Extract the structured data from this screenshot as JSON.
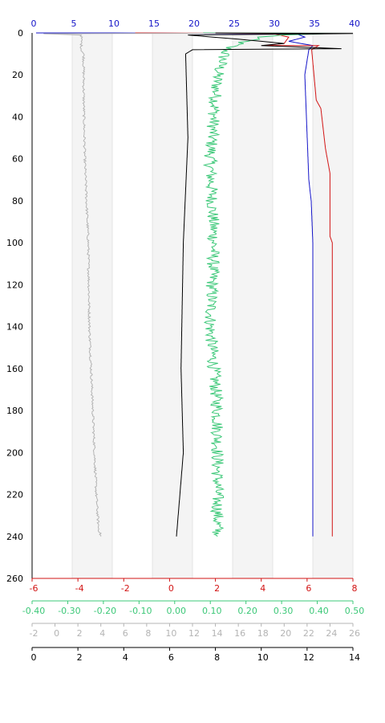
{
  "chart_data": {
    "type": "line",
    "title": "",
    "orientation": "vertical-profile",
    "grid": "alternating-bands",
    "y_axis": {
      "label": "",
      "range": [
        0,
        260
      ],
      "inverted": true,
      "ticks": [
        "0",
        "20",
        "40",
        "60",
        "80",
        "100",
        "120",
        "140",
        "160",
        "180",
        "200",
        "220",
        "240",
        "260"
      ],
      "color": "#000000"
    },
    "x_axes": [
      {
        "position": "top",
        "range": [
          0,
          40
        ],
        "color": "#1414c8",
        "ticks": [
          "0",
          "5",
          "10",
          "15",
          "20",
          "25",
          "30",
          "35",
          "40"
        ]
      },
      {
        "position": "bottom-1",
        "range": [
          -6,
          8
        ],
        "color": "#d21414",
        "ticks": [
          "-6",
          "-4",
          "-2",
          "0",
          "2",
          "4",
          "6",
          "8"
        ]
      },
      {
        "position": "bottom-2",
        "range": [
          -0.4,
          0.5
        ],
        "color": "#3cc878",
        "ticks": [
          "-0.40",
          "-0.30",
          "-0.20",
          "-0.10",
          "0.00",
          "0.10",
          "0.20",
          "0.30",
          "0.40",
          "0.50"
        ]
      },
      {
        "position": "bottom-3",
        "range": [
          -2,
          26
        ],
        "color": "#b4b4b4",
        "ticks": [
          "-2",
          "0",
          "2",
          "4",
          "6",
          "8",
          "10",
          "12",
          "14",
          "16",
          "18",
          "20",
          "22",
          "24",
          "26"
        ]
      },
      {
        "position": "bottom-4",
        "range": [
          0,
          14
        ],
        "color": "#000000",
        "ticks": [
          "0",
          "2",
          "4",
          "6",
          "8",
          "10",
          "12",
          "14"
        ]
      }
    ],
    "series": [
      {
        "axis": 0,
        "color": "#1414c8",
        "points": [
          [
            0.5,
            0
          ],
          [
            10,
            0
          ],
          [
            33,
            0.5
          ],
          [
            34,
            2
          ],
          [
            32,
            4
          ],
          [
            35,
            6
          ],
          [
            34.5,
            8
          ],
          [
            34,
            20
          ],
          [
            34.2,
            40
          ],
          [
            34.5,
            70
          ],
          [
            34.8,
            80
          ],
          [
            35,
            100
          ],
          [
            35,
            240
          ]
        ]
      },
      {
        "axis": 1,
        "color": "#d21414",
        "points": [
          [
            -1.5,
            0
          ],
          [
            4.5,
            0.3
          ],
          [
            5.2,
            2
          ],
          [
            5,
            5
          ],
          [
            4.2,
            6
          ],
          [
            6.5,
            6
          ],
          [
            6.2,
            8
          ],
          [
            6.3,
            20
          ],
          [
            6.4,
            32
          ],
          [
            6.6,
            36
          ],
          [
            6.8,
            55
          ],
          [
            7,
            67
          ],
          [
            7,
            97
          ],
          [
            7.1,
            100
          ],
          [
            7.1,
            240
          ]
        ]
      },
      {
        "axis": 2,
        "color": "#3cc878",
        "noise": 0.018,
        "points": [
          [
            0.08,
            0
          ],
          [
            0.5,
            0
          ],
          [
            0.3,
            1
          ],
          [
            0.24,
            2
          ],
          [
            0.18,
            5
          ],
          [
            0.15,
            7
          ],
          [
            0.14,
            10
          ],
          [
            0.12,
            20
          ],
          [
            0.1,
            60
          ],
          [
            0.11,
            100
          ],
          [
            0.1,
            140
          ],
          [
            0.12,
            180
          ],
          [
            0.12,
            240
          ]
        ]
      },
      {
        "axis": 3,
        "color": "#b4b4b4",
        "noise": 0.1,
        "points": [
          [
            26,
            0
          ],
          [
            -1,
            0.4
          ],
          [
            2.3,
            1
          ],
          [
            2.3,
            5
          ],
          [
            2.3,
            8
          ],
          [
            2.5,
            10
          ],
          [
            2.5,
            30
          ],
          [
            2.6,
            60
          ],
          [
            2.9,
            100
          ],
          [
            3,
            140
          ],
          [
            3.3,
            180
          ],
          [
            3.6,
            220
          ],
          [
            3.8,
            236
          ],
          [
            4,
            240
          ]
        ]
      },
      {
        "axis": 4,
        "color": "#000000",
        "points": [
          [
            8,
            0
          ],
          [
            14,
            0.3
          ],
          [
            6.8,
            1
          ],
          [
            9,
            3
          ],
          [
            11,
            5
          ],
          [
            10,
            6
          ],
          [
            13.5,
            7.5
          ],
          [
            7,
            8
          ],
          [
            6.7,
            10
          ],
          [
            6.8,
            50
          ],
          [
            6.6,
            100
          ],
          [
            6.5,
            160
          ],
          [
            6.6,
            200
          ],
          [
            6.3,
            240
          ]
        ]
      }
    ]
  }
}
